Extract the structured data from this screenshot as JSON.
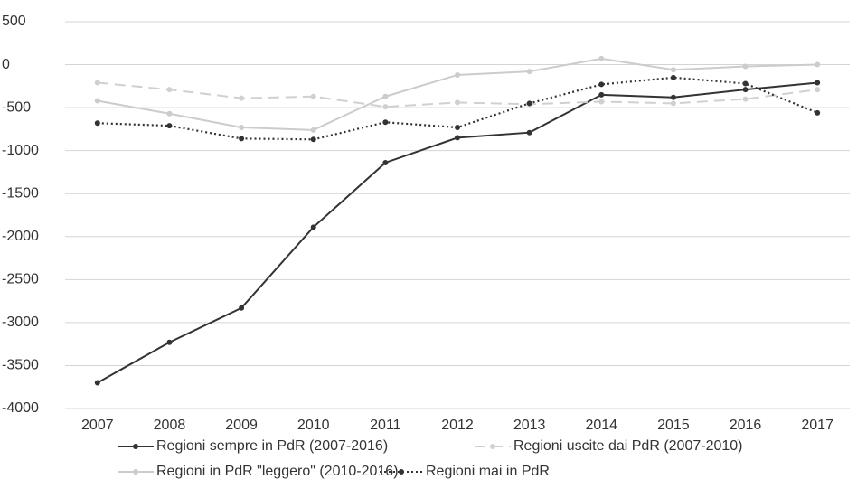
{
  "chart_data": {
    "type": "line",
    "categories": [
      "2007",
      "2008",
      "2009",
      "2010",
      "2011",
      "2012",
      "2013",
      "2014",
      "2015",
      "2016",
      "2017"
    ],
    "series": [
      {
        "name": "Regioni sempre in PdR (2007-2016)",
        "color": "#333333",
        "dash": "solid",
        "values": [
          -3700,
          -3230,
          -2830,
          -1890,
          -1140,
          -850,
          -790,
          -350,
          -380,
          -290,
          -210
        ]
      },
      {
        "name": "Regioni uscite dai PdR (2007-2010)",
        "color": "#d0d0d0",
        "dash": "dashed",
        "values": [
          -210,
          -290,
          -390,
          -370,
          -490,
          -440,
          -460,
          -430,
          -450,
          -400,
          -290
        ]
      },
      {
        "name": "Regioni in PdR \"leggero\" (2010-2016)",
        "color": "#cccccc",
        "dash": "solid",
        "values": [
          -420,
          -570,
          -730,
          -760,
          -370,
          -120,
          -80,
          70,
          -60,
          -20,
          0
        ]
      },
      {
        "name": "Regioni mai in PdR",
        "color": "#333333",
        "dash": "dotted",
        "values": [
          -680,
          -710,
          -860,
          -870,
          -670,
          -730,
          -450,
          -230,
          -150,
          -220,
          -560
        ]
      }
    ],
    "ylim": [
      -4000,
      500
    ],
    "yticks": [
      500,
      0,
      -500,
      -1000,
      -1500,
      -2000,
      -2500,
      -3000,
      -3500,
      -4000
    ],
    "grid": true
  }
}
